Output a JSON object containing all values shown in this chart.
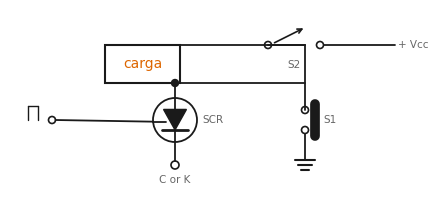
{
  "bg_color": "#ffffff",
  "line_color": "#1a1a1a",
  "label_color": "#666666",
  "carga_text": "carga",
  "carga_text_color": "#dd6600",
  "scr_label": "SCR",
  "s1_label": "S1",
  "s2_label": "S2",
  "vcc_label": "+ Vcc",
  "cork_label": "C or K",
  "figw": 4.41,
  "figh": 1.98,
  "dpi": 100
}
